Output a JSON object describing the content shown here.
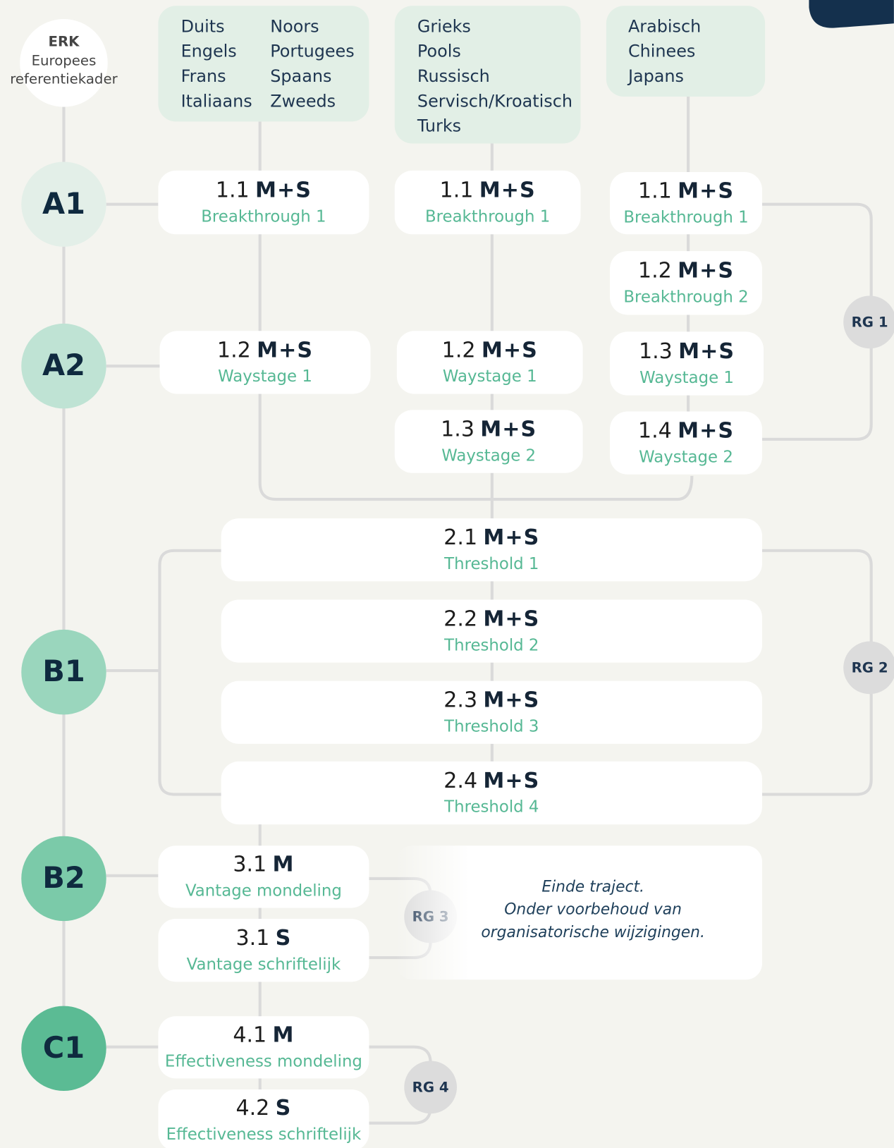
{
  "header": {
    "title": "ERK",
    "subtitle": "Europees",
    "subtitle2": "referentiekader"
  },
  "levels": [
    "A1",
    "A2",
    "B1",
    "B2",
    "C1"
  ],
  "language_groups": [
    {
      "languages": [
        "Duits",
        "Engels",
        "Frans",
        "Italiaans",
        "Noors",
        "Portugees",
        "Spaans",
        "Zweeds"
      ]
    },
    {
      "languages": [
        "Grieks",
        "Pools",
        "Russisch",
        "Servisch/Kroatisch",
        "Turks"
      ]
    },
    {
      "languages": [
        "Arabisch",
        "Chinees",
        "Japans"
      ]
    }
  ],
  "modules": [
    {
      "number": "1.1",
      "code": "M+S",
      "name": "Breakthrough 1"
    },
    {
      "number": "1.2",
      "code": "M+S",
      "name": "Waystage 1"
    },
    {
      "number": "1.1",
      "code": "M+S",
      "name": "Breakthrough 1"
    },
    {
      "number": "1.2",
      "code": "M+S",
      "name": "Waystage 1"
    },
    {
      "number": "1.3",
      "code": "M+S",
      "name": "Waystage 2"
    },
    {
      "number": "1.1",
      "code": "M+S",
      "name": "Breakthrough 1"
    },
    {
      "number": "1.2",
      "code": "M+S",
      "name": "Breakthrough 2"
    },
    {
      "number": "1.3",
      "code": "M+S",
      "name": "Waystage 1"
    },
    {
      "number": "1.4",
      "code": "M+S",
      "name": "Waystage 2"
    },
    {
      "number": "2.1",
      "code": "M+S",
      "name": "Threshold 1"
    },
    {
      "number": "2.2",
      "code": "M+S",
      "name": "Threshold 2"
    },
    {
      "number": "2.3",
      "code": "M+S",
      "name": "Threshold 3"
    },
    {
      "number": "2.4",
      "code": "M+S",
      "name": "Threshold 4"
    },
    {
      "number": "3.1",
      "code": "M",
      "name": "Vantage mondeling"
    },
    {
      "number": "3.1",
      "code": "S",
      "name": "Vantage schriftelijk"
    },
    {
      "number": "4.1",
      "code": "M",
      "name": "Effectiveness mondeling"
    },
    {
      "number": "4.2",
      "code": "S",
      "name": "Effectiveness schriftelijk"
    }
  ],
  "review_groups": [
    "RG 1",
    "RG 2",
    "RG 3",
    "RG 4"
  ],
  "note": [
    "Einde traject.",
    "Onder voorbehoud van",
    "organisatorische wijzigingen."
  ]
}
